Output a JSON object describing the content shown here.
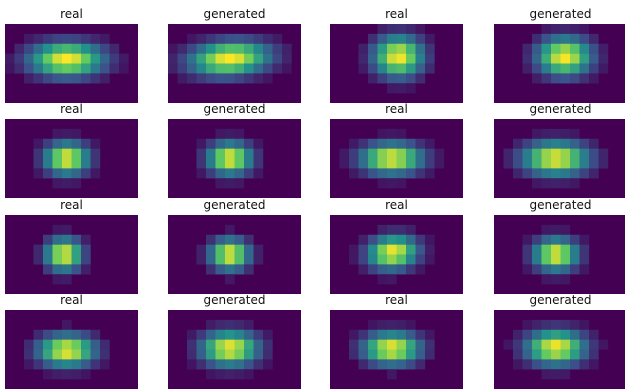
{
  "figure": {
    "colormap": "viridis",
    "background_color": "#440154",
    "grid": {
      "rows": 4,
      "cols": 4
    },
    "image_grid": {
      "rows": 8,
      "cols": 14
    },
    "panels": [
      {
        "title": "real",
        "blob": {
          "cx": 6.5,
          "cy": 3.6,
          "sx": 3.0,
          "sy": 1.35,
          "skew": 0.0
        }
      },
      {
        "title": "generated",
        "blob": {
          "cx": 6.5,
          "cy": 3.5,
          "sx": 3.2,
          "sy": 1.35,
          "skew": -0.35
        }
      },
      {
        "title": "real",
        "blob": {
          "cx": 7.2,
          "cy": 3.3,
          "sx": 2.0,
          "sy": 1.6,
          "skew": 0.0
        }
      },
      {
        "title": "generated",
        "blob": {
          "cx": 7.4,
          "cy": 3.3,
          "sx": 2.2,
          "sy": 1.5,
          "skew": 0.0
        }
      },
      {
        "title": "real",
        "blob": {
          "cx": 6.5,
          "cy": 4.0,
          "sx": 1.8,
          "sy": 1.25,
          "skew": 0.0
        }
      },
      {
        "title": "generated",
        "blob": {
          "cx": 6.5,
          "cy": 4.0,
          "sx": 1.8,
          "sy": 1.25,
          "skew": 0.0
        }
      },
      {
        "title": "real",
        "blob": {
          "cx": 6.5,
          "cy": 4.0,
          "sx": 2.5,
          "sy": 1.2,
          "skew": 0.0
        }
      },
      {
        "title": "generated",
        "blob": {
          "cx": 6.5,
          "cy": 4.0,
          "sx": 2.7,
          "sy": 1.3,
          "skew": 0.0
        }
      },
      {
        "title": "real",
        "blob": {
          "cx": 6.2,
          "cy": 4.0,
          "sx": 1.5,
          "sy": 1.25,
          "skew": 0.0
        }
      },
      {
        "title": "generated",
        "blob": {
          "cx": 6.5,
          "cy": 4.0,
          "sx": 1.6,
          "sy": 1.2,
          "skew": 0.0
        }
      },
      {
        "title": "real",
        "blob": {
          "cx": 6.6,
          "cy": 3.8,
          "sx": 2.0,
          "sy": 1.3,
          "skew": -0.15
        }
      },
      {
        "title": "generated",
        "blob": {
          "cx": 6.5,
          "cy": 4.0,
          "sx": 1.8,
          "sy": 1.25,
          "skew": 0.0
        }
      },
      {
        "title": "real",
        "blob": {
          "cx": 6.5,
          "cy": 4.1,
          "sx": 2.3,
          "sy": 1.25,
          "skew": 0.0
        }
      },
      {
        "title": "generated",
        "blob": {
          "cx": 6.5,
          "cy": 3.9,
          "sx": 2.3,
          "sy": 1.35,
          "skew": 0.0
        }
      },
      {
        "title": "real",
        "blob": {
          "cx": 6.5,
          "cy": 3.9,
          "sx": 2.3,
          "sy": 1.25,
          "skew": 0.0
        }
      },
      {
        "title": "generated",
        "blob": {
          "cx": 6.5,
          "cy": 3.8,
          "sx": 2.4,
          "sy": 1.35,
          "skew": 0.0
        }
      }
    ]
  }
}
